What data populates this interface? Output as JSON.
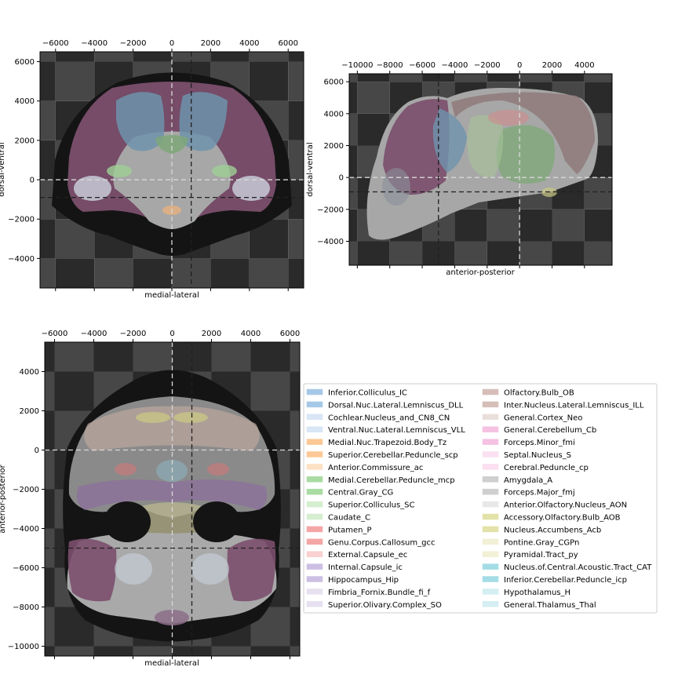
{
  "chart_data": [
    {
      "type": "heatmap",
      "view": "coronal",
      "xlabel": "medial-lateral",
      "ylabel": "dorsal-ventral",
      "xticks": [
        -6000,
        -4000,
        -2000,
        0,
        2000,
        4000,
        6000
      ],
      "yticks": [
        6000,
        4000,
        2000,
        0,
        -2000,
        -4000
      ],
      "xlim": [
        -6800,
        6800
      ],
      "ylim": [
        -5500,
        6500
      ],
      "crosshair_light": {
        "x": 0,
        "y": 0
      },
      "crosshair_dark": {
        "x": 1000,
        "y": -900
      }
    },
    {
      "type": "heatmap",
      "view": "sagittal",
      "xlabel": "anterior-posterior",
      "ylabel": "dorsal-ventral",
      "xticks": [
        -10000,
        -8000,
        -6000,
        -4000,
        -2000,
        0,
        2000,
        4000
      ],
      "yticks": [
        6000,
        4000,
        2000,
        0,
        -2000,
        -4000
      ],
      "xlim": [
        -10500,
        5700
      ],
      "ylim": [
        -5500,
        6500
      ],
      "crosshair_light": {
        "x": 0,
        "y": 0
      },
      "crosshair_dark": {
        "x": -5000,
        "y": -900
      }
    },
    {
      "type": "heatmap",
      "view": "horizontal",
      "xlabel": "medial-lateral",
      "ylabel": "anterior-posterior",
      "xticks": [
        -6000,
        -4000,
        -2000,
        0,
        2000,
        4000,
        6000
      ],
      "yticks": [
        4000,
        2000,
        0,
        -2000,
        -4000,
        -6000,
        -8000,
        -10000
      ],
      "xlim": [
        -6500,
        6500
      ],
      "ylim": [
        -10500,
        5500
      ],
      "crosshair_light": {
        "x": 0,
        "y": 0
      },
      "crosshair_dark": {
        "x": 1000,
        "y": -5000
      }
    }
  ],
  "legend": {
    "col1": [
      {
        "label": "Inferior.Colliculus_IC",
        "color": "#a6c8e8"
      },
      {
        "label": "Dorsal.Nuc.Lateral.Lemniscus_DLL",
        "color": "#a6c8e8"
      },
      {
        "label": "Cochlear.Nucleus_and_CN8_CN",
        "color": "#d8e6f5"
      },
      {
        "label": "Ventral.Nuc.Lateral.Lemniscus_VLL",
        "color": "#d8e6f5"
      },
      {
        "label": "Medial.Nuc.Trapezoid.Body_Tz",
        "color": "#fdc896"
      },
      {
        "label": "Superior.Cerebellar.Peduncle_scp",
        "color": "#fdc896"
      },
      {
        "label": "Anterior.Commissure_ac",
        "color": "#fde1c4"
      },
      {
        "label": "Medial.Cerebellar.Peduncle_mcp",
        "color": "#a9dba2"
      },
      {
        "label": "Central.Gray_CG",
        "color": "#a9dba2"
      },
      {
        "label": "Superior.Colliculus_SC",
        "color": "#d5eecf"
      },
      {
        "label": "Caudate_C",
        "color": "#d5eecf"
      },
      {
        "label": "Putamen_P",
        "color": "#f4a6a6"
      },
      {
        "label": "Genu.Corpus.Callosum_gcc",
        "color": "#f4a6a6"
      },
      {
        "label": "External.Capsule_ec",
        "color": "#fad0d0"
      },
      {
        "label": "Internal.Capsule_ic",
        "color": "#cdbfe3"
      },
      {
        "label": "Hippocampus_Hip",
        "color": "#cdbfe3"
      },
      {
        "label": "Fimbria_Fornix.Bundle_fi_f",
        "color": "#e6e0f1"
      },
      {
        "label": "Superior.Olivary.Complex_SO",
        "color": "#e6e0f1"
      }
    ],
    "col2": [
      {
        "label": "Olfactory.Bulb_OB",
        "color": "#d6bfb8"
      },
      {
        "label": "Inter.Nucleus.Lateral.Lemniscus_ILL",
        "color": "#d6bfb8"
      },
      {
        "label": "General.Cortex_Neo",
        "color": "#ebdfdb"
      },
      {
        "label": "General.Cerebellum_Cb",
        "color": "#f5c2e3"
      },
      {
        "label": "Forceps.Minor_fmi",
        "color": "#f5c2e3"
      },
      {
        "label": "Septal.Nucleus_S",
        "color": "#fae0f0"
      },
      {
        "label": "Cerebral.Peduncle_cp",
        "color": "#fae0f0"
      },
      {
        "label": "Amygdala_A",
        "color": "#cfcfcf"
      },
      {
        "label": "Forceps.Major_fmj",
        "color": "#cfcfcf"
      },
      {
        "label": "Anterior.Olfactory.Nucleus_AON",
        "color": "#e8e8e8"
      },
      {
        "label": "Accessory.Olfactory.Bulb_AOB",
        "color": "#e3e2a8"
      },
      {
        "label": "Nucleus.Accumbens_Acb",
        "color": "#e3e2a8"
      },
      {
        "label": "Pontine.Gray_CGPn",
        "color": "#f2f0d5"
      },
      {
        "label": "Pyramidal.Tract_py",
        "color": "#f2f0d5"
      },
      {
        "label": "Nucleus.of.Central.Acoustic.Tract_CAT",
        "color": "#a4dce6"
      },
      {
        "label": "Inferior.Cerebellar.Peduncle_icp",
        "color": "#a4dce6"
      },
      {
        "label": "Hypothalamus_H",
        "color": "#d4eef2"
      },
      {
        "label": "General.Thalamus_Thal",
        "color": "#d4eef2"
      }
    ]
  },
  "colors": {
    "checker_dark": "#2a2a2a",
    "checker_light": "#474747",
    "brain_shadow": "#141414",
    "brain_base": "#a7a7a7",
    "cortex_purple": "#7b4f6d",
    "colliculus_blue": "#6f93ac",
    "crosshair_light": "#d8d8d8",
    "crosshair_dark": "#202020"
  }
}
